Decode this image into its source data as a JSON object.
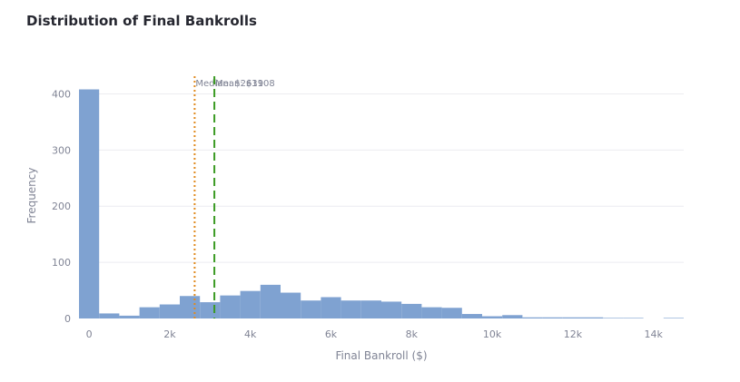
{
  "title": "Distribution of Final Bankrolls",
  "colors": {
    "bar": "#7fa2d1",
    "grid": "#ececf0",
    "median_line": "#e08a1e",
    "mean_line": "#3a9a22",
    "text": "#808495"
  },
  "chart_data": {
    "type": "bar",
    "title": "Distribution of Final Bankrolls",
    "xlabel": "Final Bankroll ($)",
    "ylabel": "Frequency",
    "xlim": [
      -250,
      14750
    ],
    "ylim": [
      0,
      425
    ],
    "x_ticks": [
      0,
      2000,
      4000,
      6000,
      8000,
      10000,
      12000,
      14000
    ],
    "x_tick_labels": [
      "0",
      "2k",
      "4k",
      "6k",
      "8k",
      "10k",
      "12k",
      "14k"
    ],
    "y_ticks": [
      0,
      100,
      200,
      300,
      400
    ],
    "y_tick_labels": [
      "0",
      "100",
      "200",
      "300",
      "400"
    ],
    "bin_width": 500,
    "bins_start": [
      -250,
      250,
      750,
      1250,
      1750,
      2250,
      2750,
      3250,
      3750,
      4250,
      4750,
      5250,
      5750,
      6250,
      6750,
      7250,
      7750,
      8250,
      8750,
      9250,
      9750,
      10250,
      10750,
      11250,
      11750,
      12250,
      12750,
      13250,
      13750,
      14250
    ],
    "values": [
      408,
      9,
      5,
      20,
      25,
      40,
      29,
      41,
      49,
      60,
      46,
      32,
      38,
      32,
      32,
      30,
      26,
      20,
      19,
      8,
      4,
      6,
      2,
      2,
      2,
      2,
      1,
      1,
      0,
      1
    ],
    "grid": true,
    "legend": "none",
    "reference_lines": [
      {
        "label": "Median: $2619",
        "x": 2619,
        "style": "dotted",
        "color": "#e08a1e"
      },
      {
        "label": "Mean: $3108",
        "x": 3108,
        "style": "dashed",
        "color": "#3a9a22"
      }
    ]
  }
}
